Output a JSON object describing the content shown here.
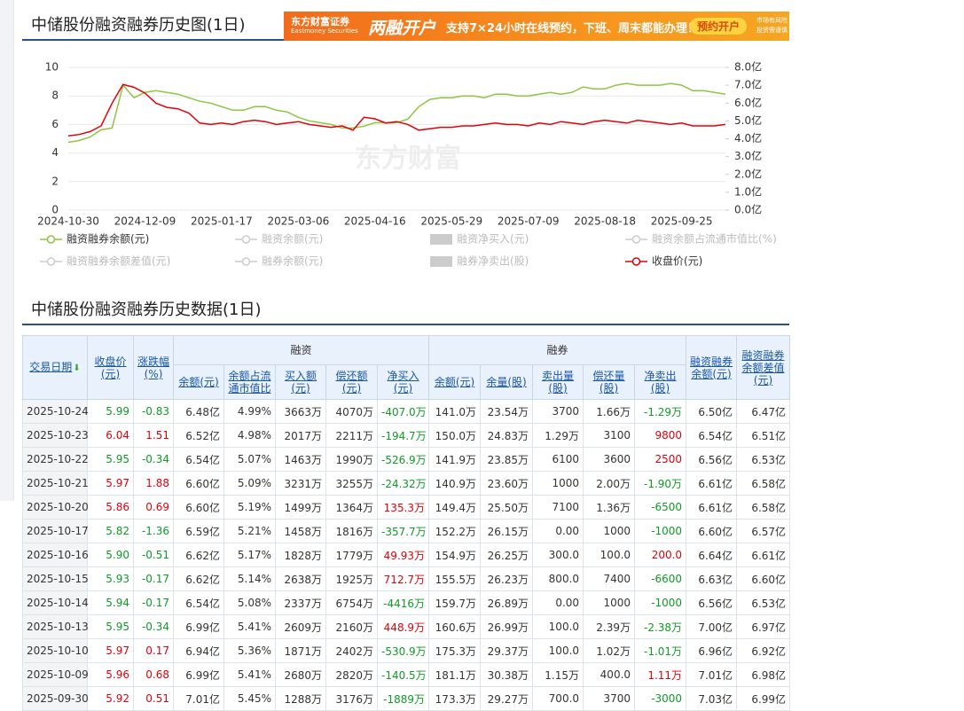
{
  "header": {
    "title": "中储股份融资融券历史图(1日)"
  },
  "ad": {
    "brand": "东方财富证券",
    "brand_en": "Eastmoney Securities",
    "headline": "两融开户",
    "text": "支持7×24小时在线预约，下班、周末都能办理！",
    "button": "预约开户",
    "disclaimer": [
      "市场有风险",
      "投资需谨慎"
    ]
  },
  "chart_data": {
    "type": "line",
    "watermark": "东方财富",
    "categories": [
      "2024-10-30",
      null,
      null,
      null,
      null,
      null,
      null,
      "2024-12-09",
      null,
      null,
      null,
      null,
      null,
      null,
      "2025-01-17",
      null,
      null,
      null,
      null,
      null,
      null,
      "2025-03-06",
      null,
      null,
      null,
      null,
      null,
      null,
      "2025-04-16",
      null,
      null,
      null,
      null,
      null,
      null,
      "2025-05-29",
      null,
      null,
      null,
      null,
      null,
      null,
      "2025-07-09",
      null,
      null,
      null,
      null,
      null,
      null,
      "2025-08-18",
      null,
      null,
      null,
      null,
      null,
      null,
      "2025-09-25",
      null,
      null,
      null,
      null
    ],
    "ylim": [
      0,
      10
    ],
    "yticks": [
      0,
      2,
      4,
      6,
      8,
      10
    ],
    "y2lim": [
      0,
      8
    ],
    "y2ticks": [
      {
        "value": 0,
        "label": "0.0亿"
      },
      {
        "value": 1,
        "label": "1.0亿"
      },
      {
        "value": 2,
        "label": "2.0亿"
      },
      {
        "value": 3,
        "label": "3.0亿"
      },
      {
        "value": 4,
        "label": "4.0亿"
      },
      {
        "value": 5,
        "label": "5.0亿"
      },
      {
        "value": 6,
        "label": "6.0亿"
      },
      {
        "value": 7,
        "label": "7.0亿"
      },
      {
        "value": 8,
        "label": "8.0亿"
      }
    ],
    "grid": true,
    "series": [
      {
        "name": "融资融券余额(元)",
        "color": "#8dc63f",
        "legend_icon": "line",
        "axis": "y2",
        "values": [
          3.8,
          3.9,
          4.1,
          4.5,
          4.6,
          7.0,
          6.3,
          6.6,
          6.7,
          6.6,
          6.5,
          6.3,
          6.1,
          6.0,
          5.8,
          5.6,
          5.6,
          5.8,
          5.8,
          5.6,
          5.5,
          5.2,
          5.0,
          4.9,
          4.8,
          4.6,
          4.6,
          4.7,
          4.9,
          4.9,
          4.9,
          5.1,
          5.8,
          6.2,
          6.3,
          6.3,
          6.4,
          6.4,
          6.3,
          6.5,
          6.5,
          6.4,
          6.4,
          6.5,
          6.6,
          6.5,
          6.6,
          6.9,
          6.8,
          6.8,
          7.0,
          7.1,
          7.0,
          7.0,
          7.0,
          7.1,
          7.0,
          6.7,
          6.7,
          6.6,
          6.5
        ]
      },
      {
        "name": "融资余额(元)",
        "color": "#cccccc",
        "legend_icon": "line"
      },
      {
        "name": "融资净买入(元)",
        "color": "#cccccc",
        "legend_icon": "rect"
      },
      {
        "name": "融资余额占流通市值比(%)",
        "color": "#cccccc",
        "legend_icon": "line"
      },
      {
        "name": "融资融券余额差值(元)",
        "color": "#cccccc",
        "legend_icon": "line"
      },
      {
        "name": "融券余额(元)",
        "color": "#cccccc",
        "legend_icon": "line"
      },
      {
        "name": "融券净卖出(股)",
        "color": "#cccccc",
        "legend_icon": "rect"
      },
      {
        "name": "收盘价(元)",
        "color": "#e3000b",
        "legend_icon": "line",
        "axis": "y",
        "values": [
          5.2,
          5.3,
          5.5,
          5.9,
          7.5,
          8.8,
          8.6,
          8.2,
          7.5,
          7.2,
          7.1,
          6.8,
          6.1,
          6.0,
          6.1,
          6.0,
          6.2,
          6.3,
          6.2,
          6.0,
          6.1,
          6.2,
          6.0,
          5.9,
          5.8,
          5.9,
          5.6,
          6.5,
          6.4,
          6.1,
          6.2,
          6.0,
          5.6,
          5.7,
          5.8,
          5.8,
          5.9,
          5.9,
          6.0,
          6.1,
          6.0,
          6.0,
          5.9,
          6.1,
          6.0,
          6.2,
          6.1,
          6.0,
          6.2,
          6.3,
          6.2,
          6.1,
          6.3,
          6.2,
          6.1,
          6.0,
          6.1,
          5.9,
          5.9,
          5.9,
          6.0
        ]
      }
    ]
  },
  "table_section": {
    "title": "中储股份融资融券历史数据(1日)"
  },
  "table": {
    "groups": [
      "融资",
      "融券"
    ],
    "columns": [
      "交易日期",
      "收盘价(元)",
      "涨跌幅(%)",
      "余额(元)",
      "余额占流通市值比",
      "买入额(元)",
      "偿还额(元)",
      "净买入(元)",
      "余额(元)",
      "余量(股)",
      "卖出量(股)",
      "偿还量(股)",
      "净卖出(股)",
      "融资融券余额(元)",
      "融资融券余额差值(元)"
    ],
    "rows": [
      [
        "2025-10-24",
        "5.99",
        "-0.83",
        "6.48亿",
        "4.99%",
        "3663万",
        "4070万",
        "-407.0万",
        "141.0万",
        "23.54万",
        "3700",
        "1.66万",
        "-1.29万",
        "6.50亿",
        "6.47亿"
      ],
      [
        "2025-10-23",
        "6.04",
        "1.51",
        "6.52亿",
        "4.98%",
        "2017万",
        "2211万",
        "-194.7万",
        "150.0万",
        "24.83万",
        "1.29万",
        "3100",
        "9800",
        "6.54亿",
        "6.51亿"
      ],
      [
        "2025-10-22",
        "5.95",
        "-0.34",
        "6.54亿",
        "5.07%",
        "1463万",
        "1990万",
        "-526.9万",
        "141.9万",
        "23.85万",
        "6100",
        "3600",
        "2500",
        "6.56亿",
        "6.53亿"
      ],
      [
        "2025-10-21",
        "5.97",
        "1.88",
        "6.60亿",
        "5.09%",
        "3231万",
        "3255万",
        "-24.32万",
        "140.9万",
        "23.60万",
        "1000",
        "2.00万",
        "-1.90万",
        "6.61亿",
        "6.58亿"
      ],
      [
        "2025-10-20",
        "5.86",
        "0.69",
        "6.60亿",
        "5.19%",
        "1499万",
        "1364万",
        "135.3万",
        "149.4万",
        "25.50万",
        "7100",
        "1.36万",
        "-6500",
        "6.61亿",
        "6.58亿"
      ],
      [
        "2025-10-17",
        "5.82",
        "-1.36",
        "6.59亿",
        "5.21%",
        "1458万",
        "1816万",
        "-357.7万",
        "152.2万",
        "26.15万",
        "0.00",
        "1000",
        "-1000",
        "6.60亿",
        "6.57亿"
      ],
      [
        "2025-10-16",
        "5.90",
        "-0.51",
        "6.62亿",
        "5.17%",
        "1828万",
        "1779万",
        "49.93万",
        "154.9万",
        "26.25万",
        "300.0",
        "100.0",
        "200.0",
        "6.64亿",
        "6.61亿"
      ],
      [
        "2025-10-15",
        "5.93",
        "-0.17",
        "6.62亿",
        "5.14%",
        "2638万",
        "1925万",
        "712.7万",
        "155.5万",
        "26.23万",
        "800.0",
        "7400",
        "-6600",
        "6.63亿",
        "6.60亿"
      ],
      [
        "2025-10-14",
        "5.94",
        "-0.17",
        "6.54亿",
        "5.08%",
        "2337万",
        "6754万",
        "-4416万",
        "159.7万",
        "26.89万",
        "0.00",
        "1000",
        "-1000",
        "6.56亿",
        "6.53亿"
      ],
      [
        "2025-10-13",
        "5.95",
        "-0.34",
        "6.99亿",
        "5.41%",
        "2609万",
        "2160万",
        "448.9万",
        "160.6万",
        "26.99万",
        "100.0",
        "2.39万",
        "-2.38万",
        "7.00亿",
        "6.97亿"
      ],
      [
        "2025-10-10",
        "5.97",
        "0.17",
        "6.94亿",
        "5.36%",
        "1871万",
        "2402万",
        "-530.9万",
        "175.3万",
        "29.37万",
        "100.0",
        "1.02万",
        "-1.01万",
        "6.96亿",
        "6.92亿"
      ],
      [
        "2025-10-09",
        "5.96",
        "0.68",
        "6.99亿",
        "5.41%",
        "2680万",
        "2820万",
        "-140.5万",
        "181.1万",
        "30.38万",
        "1.15万",
        "400.0",
        "1.11万",
        "7.01亿",
        "6.98亿"
      ],
      [
        "2025-09-30",
        "5.92",
        "0.51",
        "7.01亿",
        "5.45%",
        "1288万",
        "3176万",
        "-1889万",
        "173.3万",
        "29.27万",
        "700.0",
        "3700",
        "-3000",
        "7.03亿",
        "6.99亿"
      ]
    ]
  }
}
